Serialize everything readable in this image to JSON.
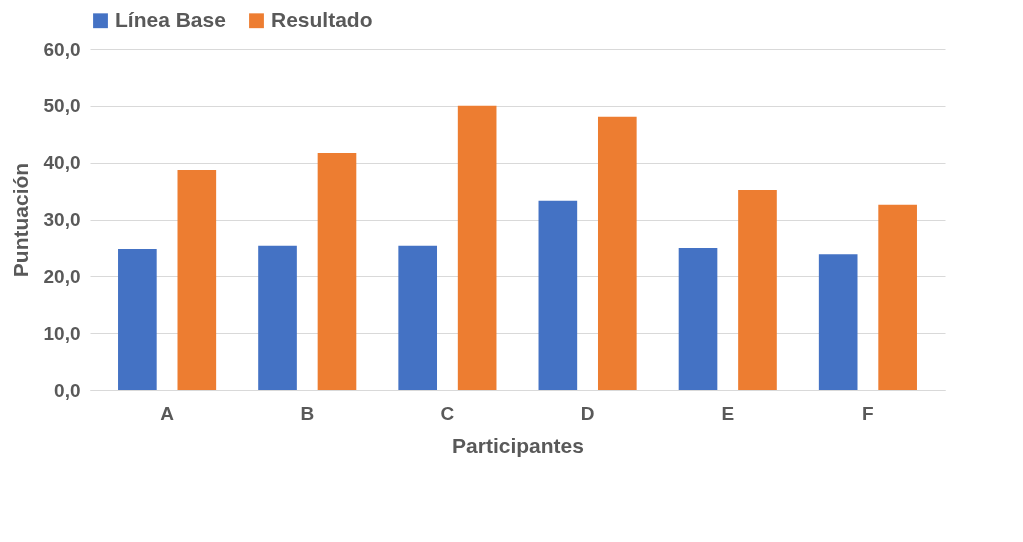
{
  "chart_data": {
    "type": "bar",
    "xlabel": "Participantes",
    "ylabel": "Puntuación",
    "categories": [
      "A",
      "B",
      "C",
      "D",
      "E",
      "F"
    ],
    "series": [
      {
        "name": "Línea Base",
        "color": "#4472c4",
        "values": [
          24.8,
          25.4,
          25.4,
          33.3,
          25.0,
          23.9
        ]
      },
      {
        "name": "Resultado",
        "color": "#ed7d31",
        "values": [
          38.7,
          41.7,
          50.0,
          48.1,
          35.2,
          32.6
        ]
      }
    ],
    "ylim": [
      0,
      60
    ],
    "yticks": [
      {
        "value": 0,
        "label": "0,0"
      },
      {
        "value": 10,
        "label": "10,0"
      },
      {
        "value": 20,
        "label": "20,0"
      },
      {
        "value": 30,
        "label": "30,0"
      },
      {
        "value": 40,
        "label": "40,0"
      },
      {
        "value": 50,
        "label": "50,0"
      },
      {
        "value": 60,
        "label": "60,0"
      }
    ],
    "grid": "y",
    "legend": "top"
  }
}
